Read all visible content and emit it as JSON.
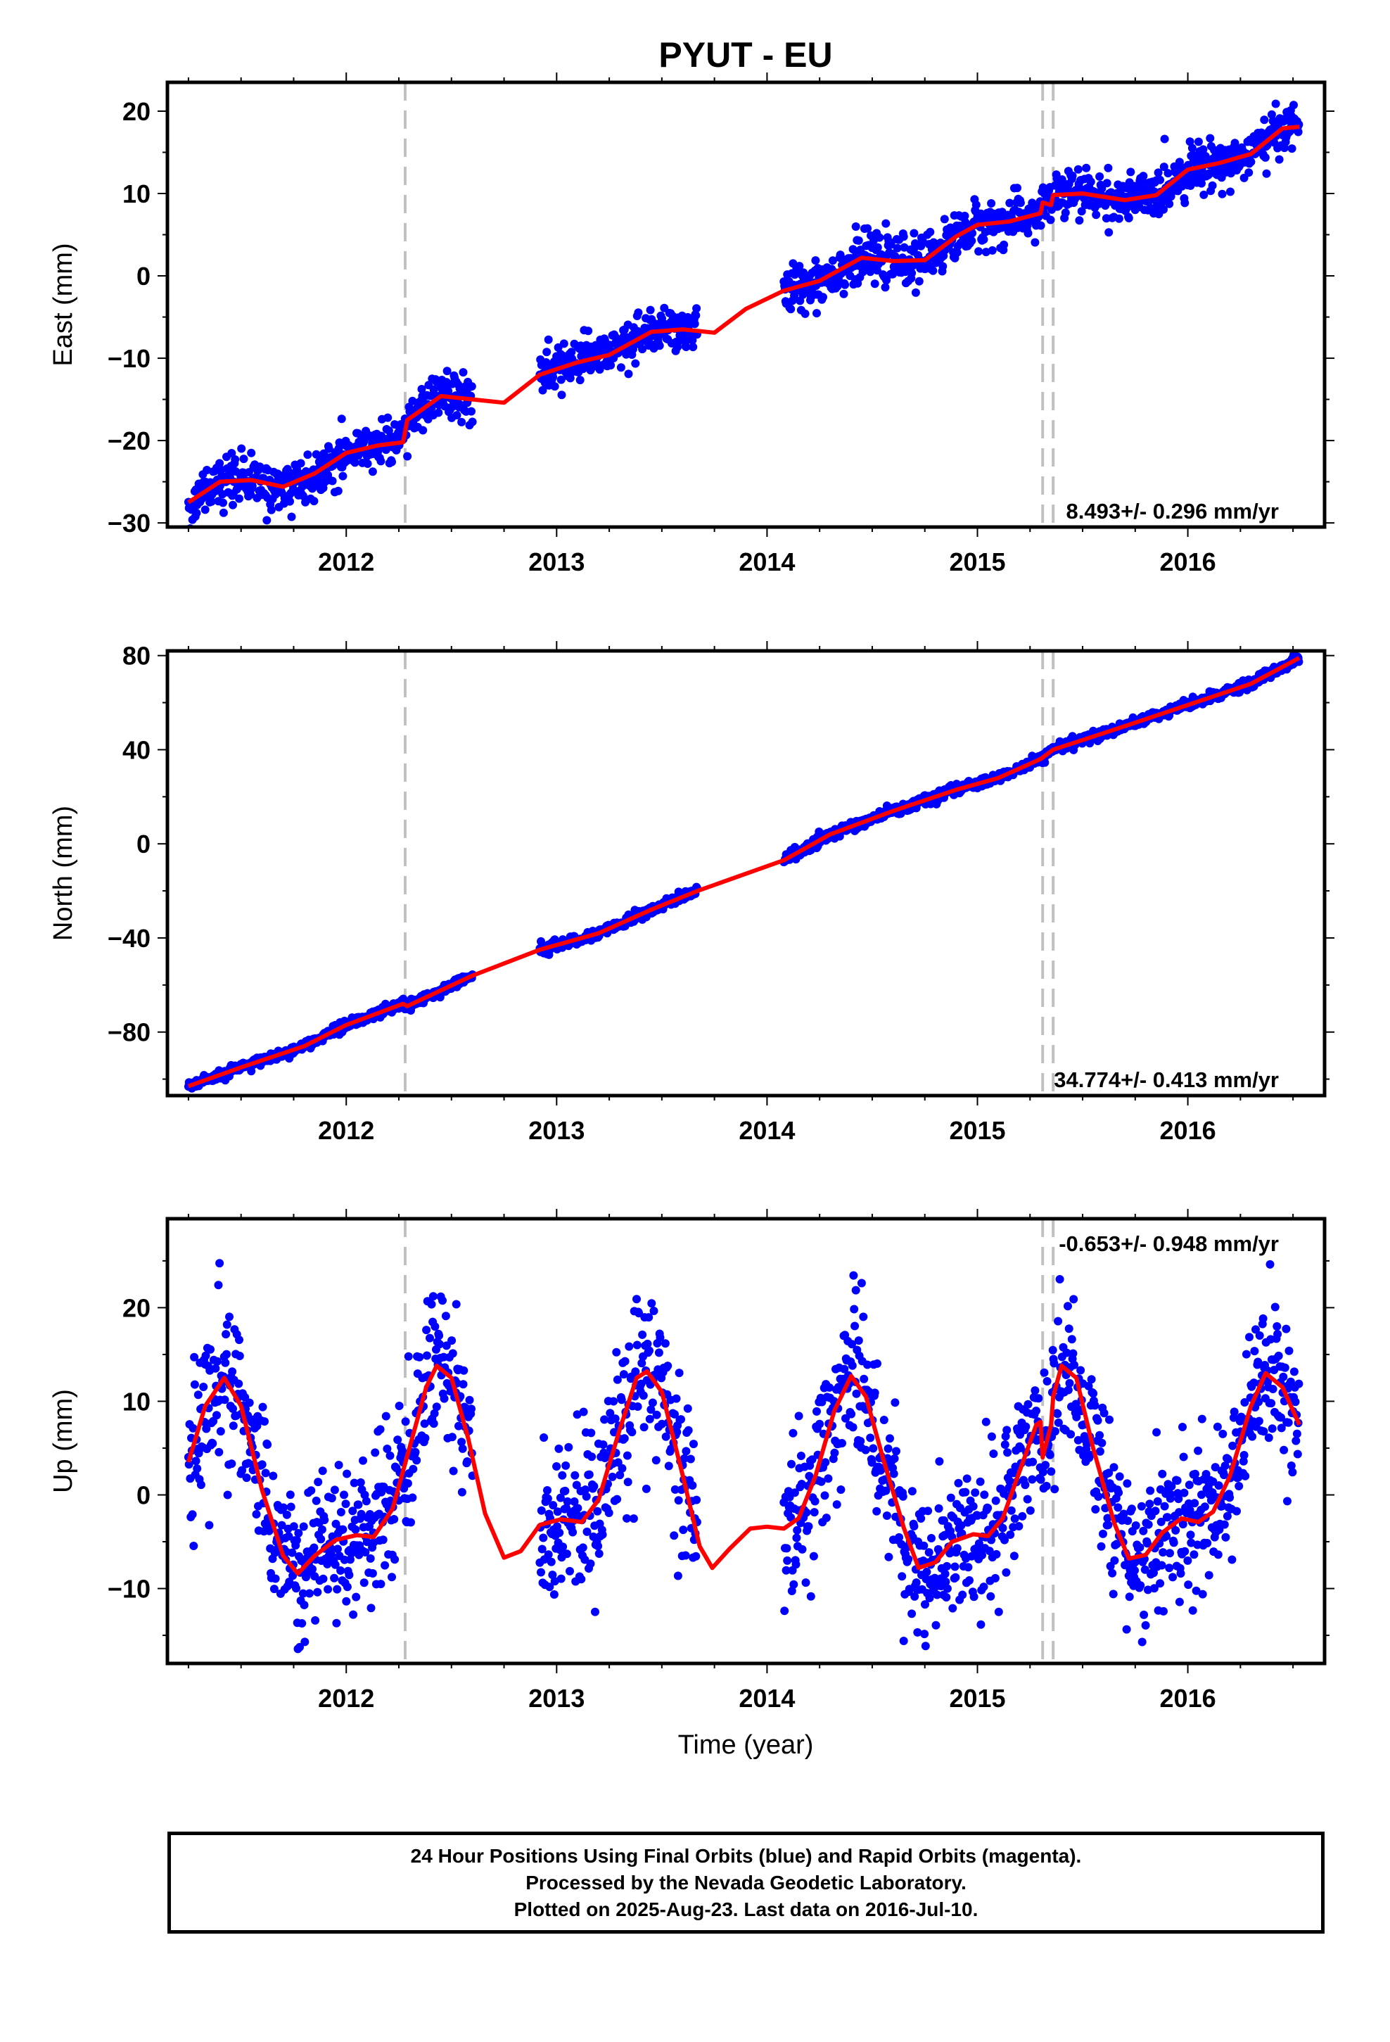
{
  "title": "PYUT - EU",
  "xlabel": "Time (year)",
  "colors": {
    "data": "#0000ff",
    "model": "#ff0000",
    "breaks": "#c0c0c0",
    "frame": "#000000"
  },
  "footer": {
    "line1": "24 Hour Positions Using Final Orbits (blue) and Rapid Orbits (magenta).",
    "line2": "Processed by the Nevada Geodetic Laboratory.",
    "line3": "Plotted on 2025-Aug-23. Last data on 2016-Jul-10."
  },
  "chart_data": [
    {
      "type": "scatter",
      "component": "east",
      "ylabel": "East (mm)",
      "rate_text": "8.493+/- 0.296 mm/yr",
      "xlim": [
        2011.15,
        2016.65
      ],
      "ylim": [
        -30.5,
        23.5
      ],
      "xticks": [
        2012,
        2013,
        2014,
        2015,
        2016
      ],
      "yticks": [
        -30,
        -20,
        -10,
        0,
        10,
        20
      ],
      "break_dates": [
        2012.28,
        2015.31,
        2015.36
      ],
      "data_segments": [
        [
          2011.25,
          2012.6
        ],
        [
          2012.92,
          2013.67
        ],
        [
          2014.08,
          2016.53
        ]
      ],
      "model_line": [
        [
          2011.25,
          -27.5
        ],
        [
          2011.4,
          -25.0
        ],
        [
          2011.55,
          -24.8
        ],
        [
          2011.7,
          -25.6
        ],
        [
          2011.85,
          -24.0
        ],
        [
          2012.0,
          -21.5
        ],
        [
          2012.15,
          -20.6
        ],
        [
          2012.27,
          -20.2
        ],
        [
          2012.29,
          -17.5
        ],
        [
          2012.45,
          -14.6
        ],
        [
          2012.6,
          -15.0
        ],
        [
          2012.75,
          -15.4
        ],
        [
          2012.92,
          -12.0
        ],
        [
          2013.1,
          -10.5
        ],
        [
          2013.25,
          -9.6
        ],
        [
          2013.45,
          -6.8
        ],
        [
          2013.6,
          -6.5
        ],
        [
          2013.75,
          -6.9
        ],
        [
          2013.9,
          -4.0
        ],
        [
          2014.08,
          -1.8
        ],
        [
          2014.25,
          -0.6
        ],
        [
          2014.45,
          2.2
        ],
        [
          2014.6,
          1.8
        ],
        [
          2014.75,
          1.9
        ],
        [
          2014.9,
          4.8
        ],
        [
          2015.0,
          6.2
        ],
        [
          2015.15,
          6.6
        ],
        [
          2015.3,
          7.6
        ],
        [
          2015.31,
          8.9
        ],
        [
          2015.35,
          8.6
        ],
        [
          2015.36,
          9.8
        ],
        [
          2015.5,
          10.0
        ],
        [
          2015.7,
          9.2
        ],
        [
          2015.85,
          9.8
        ],
        [
          2016.0,
          12.9
        ],
        [
          2016.15,
          13.7
        ],
        [
          2016.3,
          14.8
        ],
        [
          2016.45,
          17.9
        ],
        [
          2016.53,
          18.1
        ]
      ],
      "scatter_sd": 1.4
    },
    {
      "type": "scatter",
      "component": "north",
      "ylabel": "North (mm)",
      "rate_text": "34.774+/- 0.413 mm/yr",
      "xlim": [
        2011.15,
        2016.65
      ],
      "ylim": [
        -107,
        82
      ],
      "xticks": [
        2012,
        2013,
        2014,
        2015,
        2016
      ],
      "yticks": [
        -80,
        -40,
        0,
        40,
        80
      ],
      "break_dates": [
        2012.28,
        2015.31,
        2015.36
      ],
      "data_segments": [
        [
          2011.25,
          2012.6
        ],
        [
          2012.92,
          2013.67
        ],
        [
          2014.08,
          2016.53
        ]
      ],
      "model_line": [
        [
          2011.25,
          -103
        ],
        [
          2011.5,
          -95
        ],
        [
          2011.8,
          -86
        ],
        [
          2012.0,
          -77
        ],
        [
          2012.27,
          -68
        ],
        [
          2012.29,
          -69
        ],
        [
          2012.6,
          -56
        ],
        [
          2012.92,
          -45
        ],
        [
          2013.2,
          -38
        ],
        [
          2013.45,
          -28
        ],
        [
          2013.67,
          -20
        ],
        [
          2014.08,
          -7
        ],
        [
          2014.3,
          4
        ],
        [
          2014.6,
          14
        ],
        [
          2014.9,
          23
        ],
        [
          2015.1,
          28
        ],
        [
          2015.3,
          36
        ],
        [
          2015.36,
          40
        ],
        [
          2015.7,
          50
        ],
        [
          2016.0,
          59
        ],
        [
          2016.3,
          68
        ],
        [
          2016.53,
          79
        ]
      ],
      "scatter_sd": 1.0
    },
    {
      "type": "scatter",
      "component": "up",
      "ylabel": "Up (mm)",
      "rate_text": "-0.653+/- 0.948 mm/yr",
      "xlim": [
        2011.15,
        2016.65
      ],
      "ylim": [
        -18,
        29.5
      ],
      "xticks": [
        2012,
        2013,
        2014,
        2015,
        2016
      ],
      "yticks": [
        -10,
        0,
        10,
        20
      ],
      "break_dates": [
        2012.28,
        2015.31,
        2015.36
      ],
      "data_segments": [
        [
          2011.25,
          2012.6
        ],
        [
          2012.92,
          2013.67
        ],
        [
          2014.08,
          2016.53
        ]
      ],
      "model_line": [
        [
          2011.25,
          3.5
        ],
        [
          2011.33,
          9.5
        ],
        [
          2011.42,
          12.5
        ],
        [
          2011.5,
          9.5
        ],
        [
          2011.6,
          0.5
        ],
        [
          2011.7,
          -6.5
        ],
        [
          2011.77,
          -8.4
        ],
        [
          2011.85,
          -6.5
        ],
        [
          2011.95,
          -4.8
        ],
        [
          2012.05,
          -4.3
        ],
        [
          2012.13,
          -4.5
        ],
        [
          2012.22,
          -1.5
        ],
        [
          2012.3,
          5.0
        ],
        [
          2012.38,
          11.5
        ],
        [
          2012.43,
          13.8
        ],
        [
          2012.5,
          12.5
        ],
        [
          2012.58,
          6.0
        ],
        [
          2012.66,
          -2.0
        ],
        [
          2012.75,
          -6.7
        ],
        [
          2012.83,
          -6.0
        ],
        [
          2012.92,
          -3.2
        ],
        [
          2013.02,
          -2.6
        ],
        [
          2013.12,
          -2.9
        ],
        [
          2013.2,
          -0.5
        ],
        [
          2013.3,
          7.0
        ],
        [
          2013.38,
          12.5
        ],
        [
          2013.43,
          13.2
        ],
        [
          2013.5,
          11.0
        ],
        [
          2013.6,
          2.0
        ],
        [
          2013.68,
          -5.5
        ],
        [
          2013.74,
          -7.8
        ],
        [
          2013.82,
          -5.8
        ],
        [
          2013.92,
          -3.6
        ],
        [
          2014.0,
          -3.4
        ],
        [
          2014.08,
          -3.6
        ],
        [
          2014.15,
          -2.5
        ],
        [
          2014.23,
          2.0
        ],
        [
          2014.32,
          9.0
        ],
        [
          2014.4,
          12.7
        ],
        [
          2014.47,
          10.5
        ],
        [
          2014.55,
          4.0
        ],
        [
          2014.65,
          -3.5
        ],
        [
          2014.72,
          -7.8
        ],
        [
          2014.8,
          -7.2
        ],
        [
          2014.88,
          -5.0
        ],
        [
          2014.98,
          -4.2
        ],
        [
          2015.05,
          -4.4
        ],
        [
          2015.12,
          -2.5
        ],
        [
          2015.2,
          2.5
        ],
        [
          2015.28,
          7.5
        ],
        [
          2015.3,
          7.8
        ],
        [
          2015.31,
          4.0
        ],
        [
          2015.35,
          7.5
        ],
        [
          2015.36,
          10.5
        ],
        [
          2015.4,
          13.8
        ],
        [
          2015.47,
          12.5
        ],
        [
          2015.55,
          5.0
        ],
        [
          2015.65,
          -3.0
        ],
        [
          2015.72,
          -6.8
        ],
        [
          2015.8,
          -6.4
        ],
        [
          2015.88,
          -4.0
        ],
        [
          2015.97,
          -2.5
        ],
        [
          2016.05,
          -2.9
        ],
        [
          2016.12,
          -1.8
        ],
        [
          2016.2,
          2.0
        ],
        [
          2016.3,
          9.5
        ],
        [
          2016.37,
          13.0
        ],
        [
          2016.45,
          11.5
        ],
        [
          2016.53,
          7.5
        ]
      ],
      "scatter_sd": 4.2
    }
  ]
}
